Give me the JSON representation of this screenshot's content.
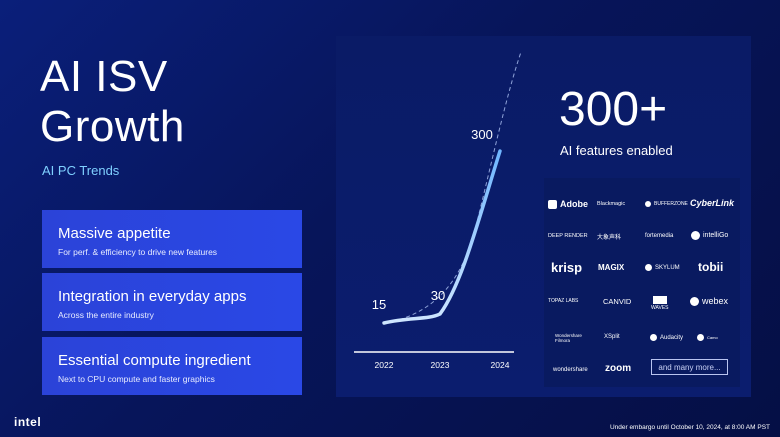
{
  "title_line1": "AI ISV",
  "title_line2": "Growth",
  "subtitle": "AI PC Trends",
  "cards": [
    {
      "heading": "Massive appetite",
      "sub": "For perf. & efficiency to drive new features"
    },
    {
      "heading": "Integration in everyday apps",
      "sub": "Across the entire industry"
    },
    {
      "heading": "Essential compute ingredient",
      "sub": "Next to CPU compute and faster graphics"
    }
  ],
  "chart_data": {
    "type": "line",
    "categories": [
      "2022",
      "2023",
      "2024"
    ],
    "series": [
      {
        "values": [
          15,
          30,
          300
        ]
      }
    ],
    "data_labels": [
      "15",
      "30",
      "300"
    ]
  },
  "headline": {
    "value": "300+",
    "label": "AI features enabled"
  },
  "partner_logos": [
    "Adobe",
    "Blackmagic",
    "BUFFERZONE",
    "CyberLink",
    "DEEP RENDER",
    "大象声科",
    "fortemedia",
    "intelliGo",
    "krisp",
    "MAGIX",
    "SKYLUM",
    "tobii",
    "TOPAZ LABS",
    "CANVID",
    "WAVES",
    "webex",
    "Wondershare Filmora",
    "XSplit",
    "Audacity",
    "Camo",
    "wondershare",
    "zoom"
  ],
  "more_label": "and many more...",
  "brand": "intel",
  "embargo": "Under embargo until October 10, 2024, at 8:00 AM PST"
}
